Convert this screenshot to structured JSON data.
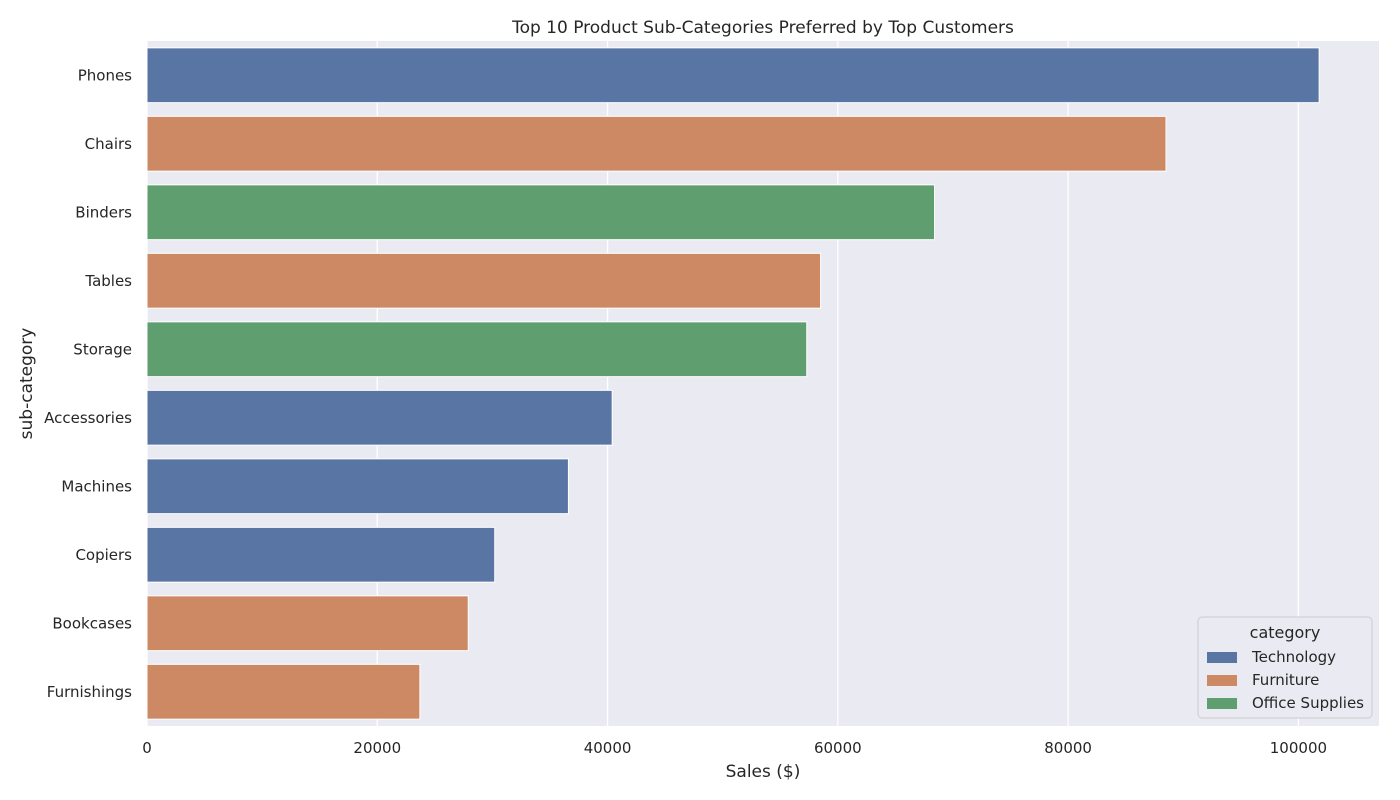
{
  "chart_data": {
    "type": "bar",
    "orientation": "horizontal",
    "title": "Top 10 Product Sub-Categories Preferred by Top Customers",
    "xlabel": "Sales ($)",
    "ylabel": "sub-category",
    "xlim": [
      0,
      107000
    ],
    "x_ticks": [
      "0",
      "20000",
      "40000",
      "60000",
      "80000",
      "100000"
    ],
    "grid": true,
    "legend_title": "category",
    "legend_position": "bottom-right",
    "legend": [
      {
        "name": "Technology",
        "color": "#5975a4"
      },
      {
        "name": "Furniture",
        "color": "#cc8963"
      },
      {
        "name": "Office Supplies",
        "color": "#5f9e6e"
      }
    ],
    "categories": [
      "Phones",
      "Chairs",
      "Binders",
      "Tables",
      "Storage",
      "Accessories",
      "Machines",
      "Copiers",
      "Bookcases",
      "Furnishings"
    ],
    "values": [
      101800,
      88500,
      68400,
      58500,
      57300,
      40400,
      36600,
      30200,
      27900,
      23700
    ],
    "bar_category": [
      "Technology",
      "Furniture",
      "Office Supplies",
      "Furniture",
      "Office Supplies",
      "Technology",
      "Technology",
      "Technology",
      "Furniture",
      "Furniture"
    ]
  }
}
